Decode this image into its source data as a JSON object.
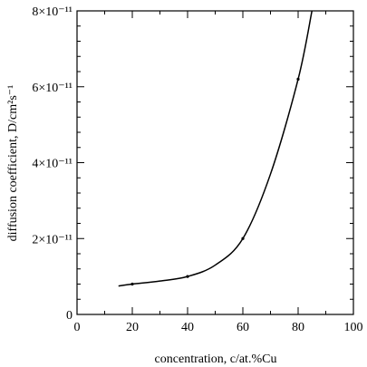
{
  "chart_data": {
    "type": "line",
    "xlabel": "concentration, c/at.%Cu",
    "ylabel": "diffusion coefficient, D/cm²s⁻¹",
    "xlim": [
      0,
      100
    ],
    "ylim": [
      0,
      8e-11
    ],
    "x_ticks": [
      0,
      20,
      40,
      60,
      80,
      100
    ],
    "x_tick_labels": [
      "0",
      "20",
      "40",
      "60",
      "80",
      "100"
    ],
    "y_ticks": [
      0,
      2e-11,
      4e-11,
      6e-11,
      8e-11
    ],
    "y_tick_labels": [
      "0",
      "2×10⁻¹¹",
      "4×10⁻¹¹",
      "6×10⁻¹¹",
      "8×10⁻¹¹"
    ],
    "grid": false,
    "series": [
      {
        "x": [
          15,
          20,
          30,
          40,
          50,
          60,
          70,
          80,
          85
        ],
        "y": [
          7.5e-12,
          8e-12,
          8.8e-12,
          1e-11,
          1.3e-11,
          2e-11,
          3.7e-11,
          6.2e-11,
          8e-11
        ],
        "markers_x": [
          20,
          40,
          60,
          80
        ],
        "markers_y": [
          8e-12,
          1e-11,
          2e-11,
          6.2e-11
        ]
      }
    ]
  }
}
